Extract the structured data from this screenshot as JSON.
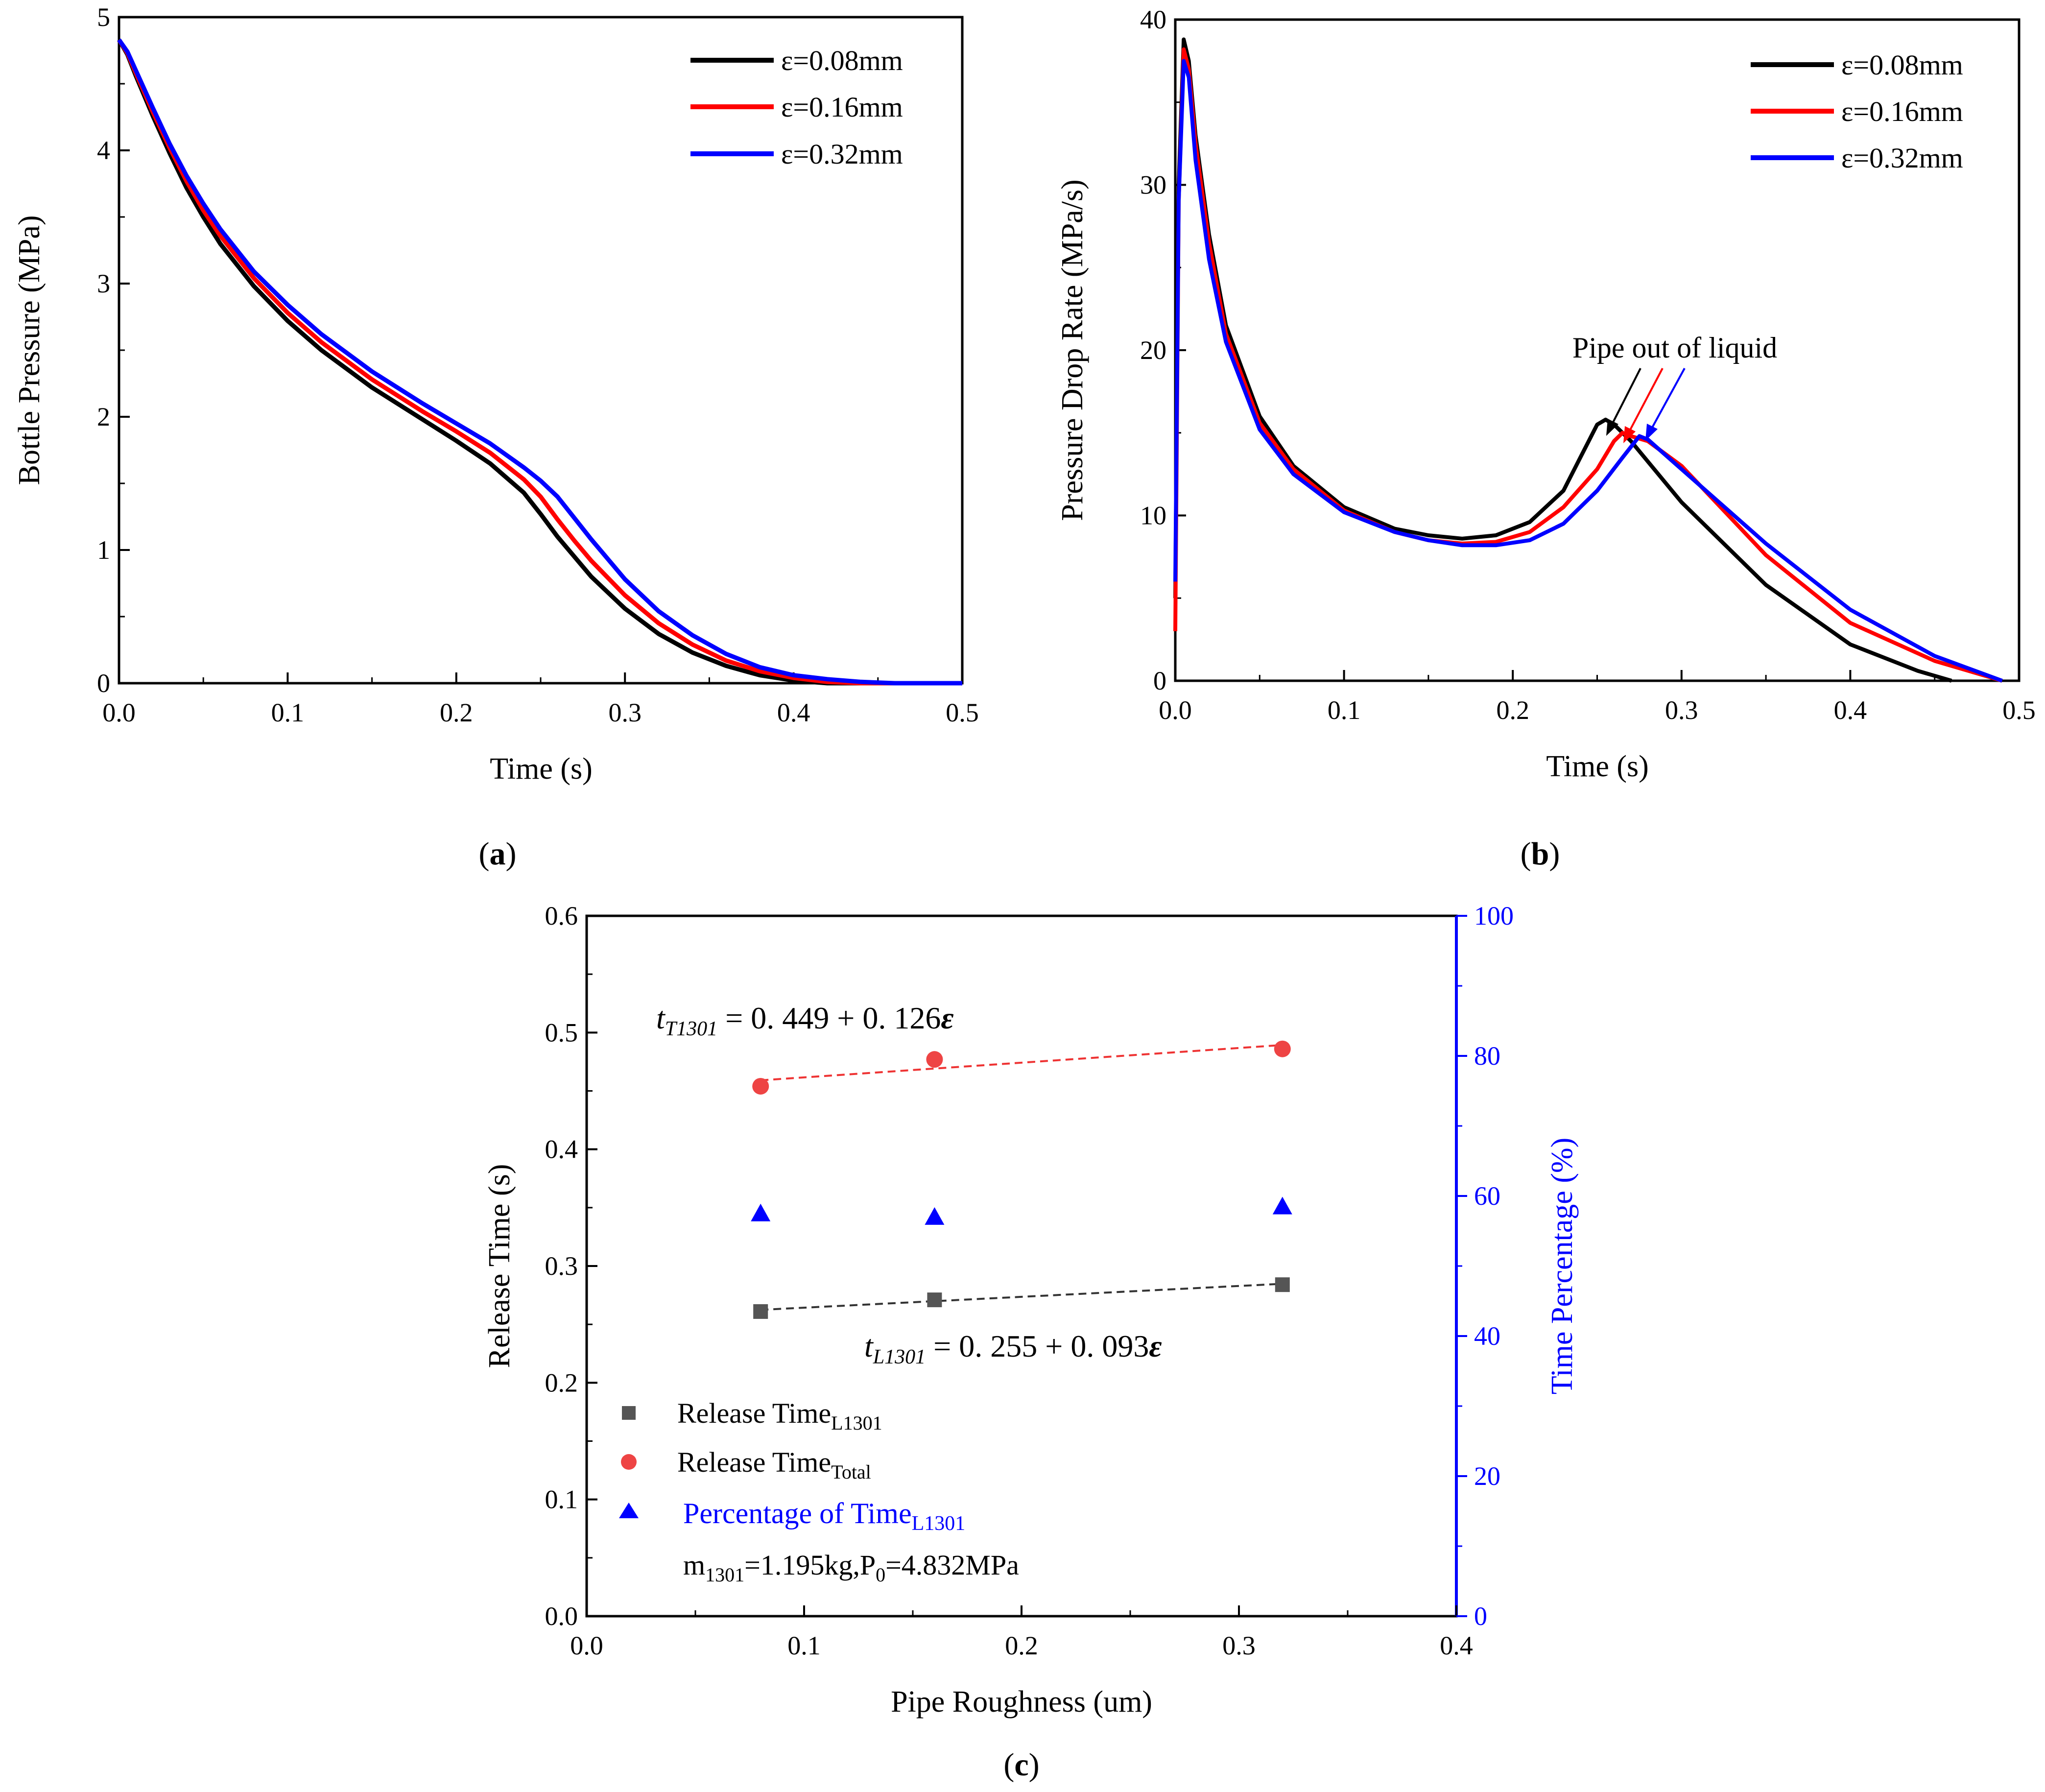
{
  "chart_data": [
    {
      "type": "line",
      "panel": "a",
      "xlabel": "Time (s)",
      "ylabel": "Bottle Pressure (MPa)",
      "xlim": [
        0,
        0.5
      ],
      "ylim": [
        0,
        5
      ],
      "xticks": [
        "0.0",
        "0.1",
        "0.2",
        "0.3",
        "0.4",
        "0.5"
      ],
      "yticks": [
        "0",
        "1",
        "2",
        "3",
        "4",
        "5"
      ],
      "legend_position": "top-right",
      "x": [
        0,
        0.005,
        0.01,
        0.02,
        0.03,
        0.04,
        0.05,
        0.06,
        0.08,
        0.1,
        0.12,
        0.15,
        0.18,
        0.2,
        0.22,
        0.24,
        0.25,
        0.26,
        0.27,
        0.28,
        0.3,
        0.32,
        0.34,
        0.36,
        0.38,
        0.4,
        0.42,
        0.44,
        0.46,
        0.48,
        0.5
      ],
      "series": [
        {
          "name": "ε=0.08mm",
          "color": "#000000",
          "values": [
            4.83,
            4.72,
            4.56,
            4.26,
            3.98,
            3.72,
            3.5,
            3.3,
            2.98,
            2.72,
            2.5,
            2.22,
            1.98,
            1.82,
            1.65,
            1.43,
            1.27,
            1.1,
            0.95,
            0.8,
            0.56,
            0.37,
            0.23,
            0.13,
            0.06,
            0.02,
            0.0,
            0.0,
            0.0,
            0.0,
            0.0
          ]
        },
        {
          "name": "ε=0.16mm",
          "color": "#ff0000",
          "values": [
            4.83,
            4.73,
            4.58,
            4.29,
            4.02,
            3.77,
            3.55,
            3.36,
            3.04,
            2.78,
            2.56,
            2.28,
            2.04,
            1.89,
            1.73,
            1.53,
            1.4,
            1.23,
            1.07,
            0.92,
            0.66,
            0.45,
            0.29,
            0.17,
            0.09,
            0.04,
            0.01,
            0.0,
            0.0,
            0.0,
            0.0
          ]
        },
        {
          "name": "ε=0.32mm",
          "color": "#0000ff",
          "values": [
            4.83,
            4.74,
            4.6,
            4.32,
            4.05,
            3.81,
            3.6,
            3.41,
            3.09,
            2.84,
            2.62,
            2.34,
            2.1,
            1.95,
            1.8,
            1.62,
            1.52,
            1.4,
            1.24,
            1.08,
            0.78,
            0.54,
            0.36,
            0.22,
            0.12,
            0.06,
            0.03,
            0.01,
            0.0,
            0.0,
            0.0
          ]
        }
      ],
      "caption": "(a)"
    },
    {
      "type": "line",
      "panel": "b",
      "xlabel": "Time (s)",
      "ylabel": "Pressure Drop Rate (MPa/s)",
      "xlim": [
        0,
        0.5
      ],
      "ylim": [
        0,
        40
      ],
      "xticks": [
        "0.0",
        "0.1",
        "0.2",
        "0.3",
        "0.4",
        "0.5"
      ],
      "yticks": [
        "0",
        "10",
        "20",
        "30",
        "40"
      ],
      "legend_position": "top-right",
      "annotation": "Pipe out of liquid",
      "series": [
        {
          "name": "ε=0.08mm",
          "color": "#000000",
          "x": [
            0,
            0.002,
            0.005,
            0.008,
            0.012,
            0.02,
            0.03,
            0.05,
            0.07,
            0.1,
            0.13,
            0.15,
            0.17,
            0.19,
            0.21,
            0.23,
            0.24,
            0.25,
            0.255,
            0.26,
            0.27,
            0.3,
            0.35,
            0.4,
            0.44,
            0.46
          ],
          "values": [
            5,
            30,
            38.8,
            37.5,
            33,
            27,
            21.5,
            16,
            13,
            10.5,
            9.2,
            8.8,
            8.6,
            8.8,
            9.6,
            11.5,
            13.5,
            15.5,
            15.8,
            15.5,
            14.5,
            10.8,
            5.8,
            2.2,
            0.6,
            0.0
          ]
        },
        {
          "name": "ε=0.16mm",
          "color": "#ff0000",
          "x": [
            0,
            0.002,
            0.005,
            0.008,
            0.012,
            0.02,
            0.03,
            0.05,
            0.07,
            0.1,
            0.13,
            0.15,
            0.17,
            0.19,
            0.21,
            0.23,
            0.25,
            0.26,
            0.265,
            0.27,
            0.28,
            0.3,
            0.35,
            0.4,
            0.45,
            0.49
          ],
          "values": [
            3,
            29,
            38.2,
            37,
            32.5,
            26.5,
            21,
            15.6,
            12.8,
            10.3,
            9.0,
            8.5,
            8.3,
            8.4,
            9.0,
            10.5,
            12.8,
            14.5,
            15.0,
            14.8,
            14.5,
            13.0,
            7.6,
            3.5,
            1.2,
            0.0
          ]
        },
        {
          "name": "ε=0.32mm",
          "color": "#0000ff",
          "x": [
            0,
            0.002,
            0.005,
            0.008,
            0.012,
            0.02,
            0.03,
            0.05,
            0.07,
            0.1,
            0.13,
            0.15,
            0.17,
            0.19,
            0.21,
            0.23,
            0.25,
            0.265,
            0.275,
            0.28,
            0.3,
            0.35,
            0.4,
            0.45,
            0.49
          ],
          "values": [
            6,
            29,
            37.5,
            36.5,
            31.5,
            25.5,
            20.5,
            15.2,
            12.5,
            10.2,
            9.0,
            8.5,
            8.2,
            8.2,
            8.5,
            9.5,
            11.5,
            13.5,
            14.8,
            14.6,
            12.8,
            8.3,
            4.3,
            1.5,
            0.0
          ]
        }
      ],
      "caption": "(b)"
    },
    {
      "type": "scatter",
      "panel": "c",
      "xlabel": "Pipe Roughness (um)",
      "ylabel": "Release Time (s)",
      "y2label": "Time Percentage (%)",
      "xlim": [
        0,
        0.4
      ],
      "ylim": [
        0,
        0.6
      ],
      "y2lim": [
        0,
        100
      ],
      "xticks": [
        "0.0",
        "0.1",
        "0.2",
        "0.3",
        "0.4"
      ],
      "yticks": [
        "0.0",
        "0.1",
        "0.2",
        "0.3",
        "0.4",
        "0.5",
        "0.6"
      ],
      "y2ticks": [
        "0",
        "20",
        "40",
        "60",
        "80",
        "100"
      ],
      "x": [
        0.08,
        0.16,
        0.32
      ],
      "series": [
        {
          "name": "Release Time",
          "subscript": "L1301",
          "marker": "square",
          "color": "#555555",
          "axis": "left",
          "values": [
            0.261,
            0.271,
            0.284
          ]
        },
        {
          "name": "Release Time",
          "subscript": "Total",
          "marker": "circle",
          "color": "#ee4444",
          "axis": "left",
          "values": [
            0.454,
            0.477,
            0.486
          ]
        },
        {
          "name": "Percentage of Time",
          "subscript": "L1301",
          "marker": "triangle",
          "color": "#0000ff",
          "axis": "right",
          "values": [
            57.5,
            57.0,
            58.5
          ]
        }
      ],
      "fits": [
        {
          "label_main": "t",
          "label_sub": "T1301",
          "label_eq": " = 0. 449 + 0. 126",
          "label_var": "ε",
          "intercept": 0.449,
          "slope": 0.126,
          "color": "#ee3333"
        },
        {
          "label_main": "t",
          "label_sub": "L1301",
          "label_eq": " = 0. 255 + 0. 093",
          "label_var": "ε",
          "intercept": 0.255,
          "slope": 0.093,
          "color": "#333333"
        }
      ],
      "note": {
        "m": "m",
        "m_sub": "1301",
        "m_val": "=1.195kg,P",
        "p_sub": "0",
        "p_val": "=4.832MPa"
      },
      "caption": "(c)"
    }
  ],
  "captions": {
    "a_open": "(",
    "a": "a",
    "a_close": ")",
    "b_open": "(",
    "b": "b",
    "b_close": ")",
    "c_open": "(",
    "c": "c",
    "c_close": ")"
  }
}
